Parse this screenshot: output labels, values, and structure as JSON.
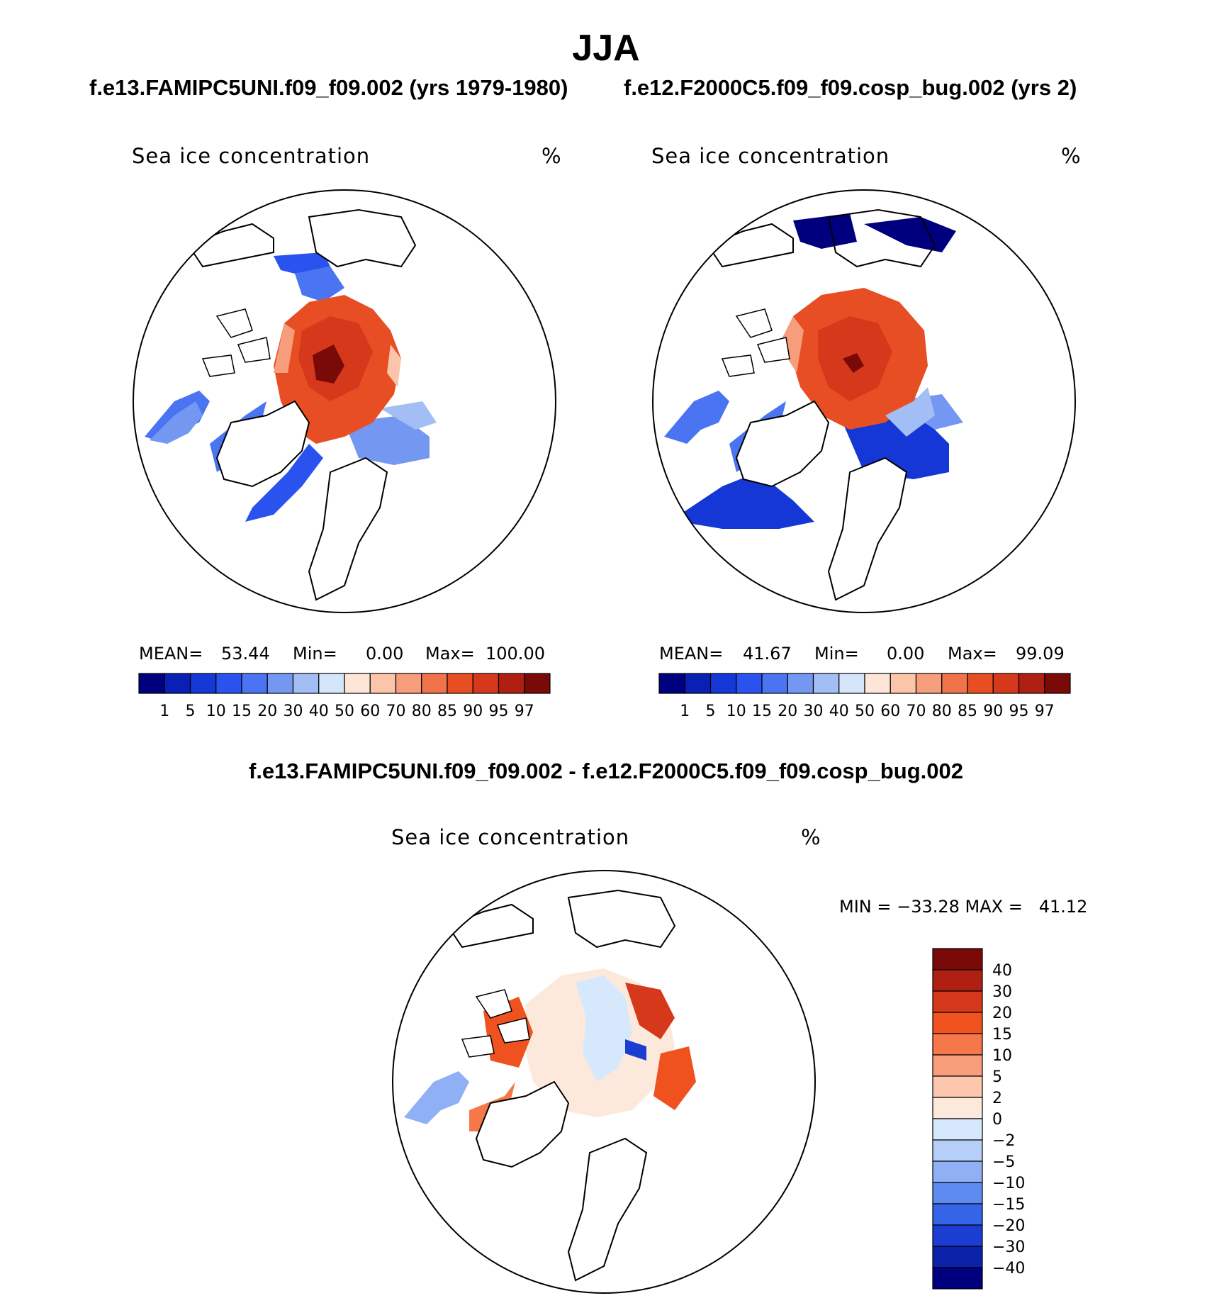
{
  "title": "JJA",
  "panels": [
    {
      "subtitle": "f.e13.FAMIPC5UNI.f09_f09.002 (yrs 1979-1980)",
      "variable": "Sea ice concentration",
      "units": "%",
      "stats": {
        "mean_label": "MEAN=",
        "mean": "53.44",
        "min_label": "Min=",
        "min": "0.00",
        "max_label": "Max=",
        "max": "100.00"
      }
    },
    {
      "subtitle": "f.e12.F2000C5.f09_f09.cosp_bug.002 (yrs 2)",
      "variable": "Sea ice concentration",
      "units": "%",
      "stats": {
        "mean_label": "MEAN=",
        "mean": "41.67",
        "min_label": "Min=",
        "min": "0.00",
        "max_label": "Max=",
        "max": "99.09"
      }
    },
    {
      "subtitle": "f.e13.FAMIPC5UNI.f09_f09.002 - f.e12.F2000C5.f09_f09.cosp_bug.002",
      "variable": "Sea ice concentration",
      "units": "%",
      "minmax": "MIN = −33.28 MAX =   41.12"
    }
  ],
  "chart_data": [
    {
      "type": "heatmap",
      "title": "Sea ice concentration",
      "units": "%",
      "projection": "north-polar-stereographic",
      "mean": 53.44,
      "min": 0.0,
      "max": 100.0,
      "colorbar_levels": [
        "1",
        "5",
        "10",
        "15",
        "20",
        "30",
        "40",
        "50",
        "60",
        "70",
        "80",
        "85",
        "90",
        "95",
        "97"
      ],
      "colorbar_colors": [
        "#00007f",
        "#0a1fb4",
        "#1437d6",
        "#2a52ee",
        "#4a74f2",
        "#7497f2",
        "#a3bdf5",
        "#d5e6fb",
        "#fde6d8",
        "#fbc5aa",
        "#f69d7b",
        "#f07349",
        "#e84e24",
        "#d5381a",
        "#b02012",
        "#7a0a08"
      ]
    },
    {
      "type": "heatmap",
      "title": "Sea ice concentration",
      "units": "%",
      "projection": "north-polar-stereographic",
      "mean": 41.67,
      "min": 0.0,
      "max": 99.09,
      "colorbar_levels": [
        "1",
        "5",
        "10",
        "15",
        "20",
        "30",
        "40",
        "50",
        "60",
        "70",
        "80",
        "85",
        "90",
        "95",
        "97"
      ],
      "colorbar_colors": [
        "#00007f",
        "#0a1fb4",
        "#1437d6",
        "#2a52ee",
        "#4a74f2",
        "#7497f2",
        "#a3bdf5",
        "#d5e6fb",
        "#fde6d8",
        "#fbc5aa",
        "#f69d7b",
        "#f07349",
        "#e84e24",
        "#d5381a",
        "#b02012",
        "#7a0a08"
      ]
    },
    {
      "type": "heatmap",
      "title": "Sea ice concentration",
      "units": "%",
      "projection": "north-polar-stereographic",
      "min": -33.28,
      "max": 41.12,
      "colorbar_levels": [
        "40",
        "30",
        "20",
        "15",
        "10",
        "5",
        "2",
        "0",
        "−2",
        "−5",
        "−10",
        "−15",
        "−20",
        "−30",
        "−40"
      ],
      "colorbar_colors": [
        "#7a0a08",
        "#b02012",
        "#d5381a",
        "#f0521f",
        "#f5774a",
        "#f89e7a",
        "#fcc7ad",
        "#fde9dc",
        "#d6e8fb",
        "#b5cff8",
        "#8fb0f5",
        "#5e8bf0",
        "#3464e8",
        "#1a3ed2",
        "#0b22a8",
        "#00007f"
      ]
    }
  ]
}
